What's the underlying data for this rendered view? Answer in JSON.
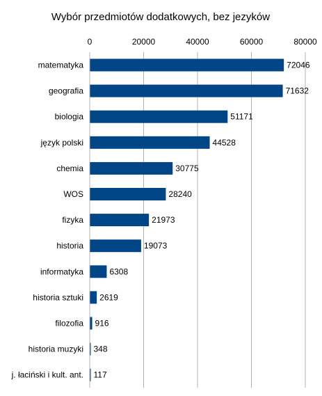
{
  "chart_data": {
    "type": "bar",
    "orientation": "horizontal",
    "title": "Wybór przedmiotów dodatkowych, bez jezyków",
    "xlabel": "",
    "ylabel": "",
    "xlim": [
      0,
      80000
    ],
    "x_ticks": [
      0,
      20000,
      40000,
      60000,
      80000
    ],
    "x_axis_position": "top",
    "grid": true,
    "legend": "none",
    "bar_color": "#004586",
    "categories": [
      "matematyka",
      "geografia",
      "biologia",
      "język polski",
      "chemia",
      "WOS",
      "fizyka",
      "historia",
      "informatyka",
      "historia sztuki",
      "filozofia",
      "historia muzyki",
      "j. łaciński i kult. ant."
    ],
    "values": [
      72046,
      71632,
      51171,
      44528,
      30775,
      28240,
      21973,
      19073,
      6308,
      2619,
      916,
      348,
      117
    ]
  }
}
